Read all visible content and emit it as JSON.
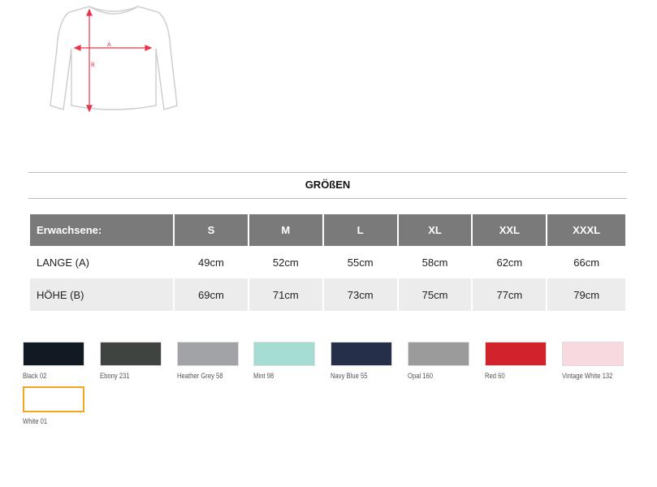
{
  "diagram": {
    "label_a": "A",
    "label_b": "B"
  },
  "section_title": "GRÖßEN",
  "table": {
    "headers": [
      "Erwachsene:",
      "S",
      "M",
      "L",
      "XL",
      "XXL",
      "XXXL"
    ],
    "rows": [
      {
        "label": "LANGE (A)",
        "values": [
          "49cm",
          "52cm",
          "55cm",
          "58cm",
          "62cm",
          "66cm"
        ]
      },
      {
        "label": "HÖHE (B)",
        "values": [
          "69cm",
          "71cm",
          "73cm",
          "75cm",
          "77cm",
          "79cm"
        ]
      }
    ]
  },
  "colors": [
    {
      "name": "Black 02",
      "hex": "#111a22"
    },
    {
      "name": "Ebony 231",
      "hex": "#404441"
    },
    {
      "name": "Heather Grey 58",
      "hex": "#a2a3a7"
    },
    {
      "name": "Mint 98",
      "hex": "#a5ddd3"
    },
    {
      "name": "Navy Blue 55",
      "hex": "#252f49"
    },
    {
      "name": "Opal 160",
      "hex": "#9b9b9b"
    },
    {
      "name": "Red 60",
      "hex": "#d2232d"
    },
    {
      "name": "Vintage White 132",
      "hex": "#f7d9df"
    },
    {
      "name": "White 01",
      "hex": "#ffffff",
      "selected": true
    }
  ],
  "selected_border": "#f5a623"
}
